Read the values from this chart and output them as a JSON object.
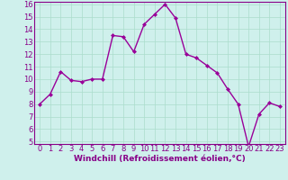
{
  "x": [
    0,
    1,
    2,
    3,
    4,
    5,
    6,
    7,
    8,
    9,
    10,
    11,
    12,
    13,
    14,
    15,
    16,
    17,
    18,
    19,
    20,
    21,
    22,
    23
  ],
  "y": [
    8.0,
    8.8,
    10.6,
    9.9,
    9.8,
    10.0,
    10.0,
    13.5,
    13.4,
    12.2,
    14.4,
    15.2,
    16.0,
    14.9,
    12.0,
    11.7,
    11.1,
    10.5,
    9.2,
    8.0,
    4.6,
    7.2,
    8.1,
    7.8
  ],
  "line_color": "#990099",
  "marker": "D",
  "marker_size": 2.0,
  "line_width": 1.0,
  "bg_color": "#cff0ec",
  "grid_color": "#aaddcc",
  "xlabel": "Windchill (Refroidissement éolien,°C)",
  "xlabel_color": "#880088",
  "xlabel_fontsize": 6.5,
  "tick_color": "#880088",
  "tick_fontsize": 6.0,
  "ylim": [
    5,
    16
  ],
  "xlim": [
    -0.5,
    23.5
  ],
  "yticks": [
    5,
    6,
    7,
    8,
    9,
    10,
    11,
    12,
    13,
    14,
    15,
    16
  ],
  "xticks": [
    0,
    1,
    2,
    3,
    4,
    5,
    6,
    7,
    8,
    9,
    10,
    11,
    12,
    13,
    14,
    15,
    16,
    17,
    18,
    19,
    20,
    21,
    22,
    23
  ]
}
